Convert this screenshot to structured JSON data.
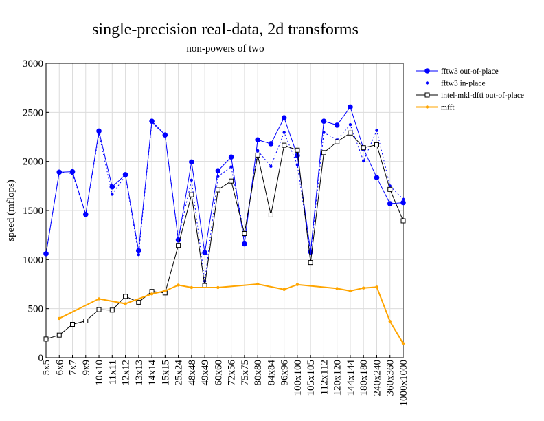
{
  "chart_data": {
    "type": "line",
    "title": "single-precision real-data, 2d transforms",
    "subtitle": "non-powers of two",
    "ylabel": "speed (mflops)",
    "xlabel": "",
    "ylim": [
      0,
      3000
    ],
    "yticks": [
      0,
      500,
      1000,
      1500,
      2000,
      2500,
      3000
    ],
    "grid": true,
    "legend_position": "top-right, outside plot",
    "categories": [
      "5x5",
      "6x6",
      "7x7",
      "9x9",
      "10x10",
      "11x11",
      "12x12",
      "13x13",
      "14x14",
      "15x15",
      "25x24",
      "48x48",
      "49x49",
      "60x60",
      "72x56",
      "75x75",
      "80x80",
      "84x84",
      "96x96",
      "100x100",
      "105x105",
      "112x112",
      "120x120",
      "144x144",
      "180x180",
      "240x240",
      "360x360",
      "1000x1000"
    ],
    "series": [
      {
        "name": "fftw3 out-of-place",
        "color": "#0000ff",
        "style": "solid",
        "marker": "filled-circle",
        "values": [
          1060,
          1890,
          1895,
          1460,
          2310,
          1740,
          1865,
          1090,
          2410,
          2270,
          1200,
          1995,
          1070,
          1905,
          2045,
          1160,
          2220,
          2180,
          2445,
          2060,
          1080,
          2410,
          2370,
          2555,
          2130,
          1835,
          1570,
          1580
        ]
      },
      {
        "name": "fftw3 in-place",
        "color": "#0000ff",
        "style": "dotted",
        "marker": "small-dot",
        "values": [
          1060,
          1890,
          1875,
          1460,
          2280,
          1665,
          1855,
          1050,
          2400,
          2265,
          1215,
          1810,
          780,
          1845,
          1945,
          1250,
          2110,
          1950,
          2295,
          1965,
          1060,
          2295,
          2220,
          2375,
          2005,
          2315,
          1750,
          1615
        ]
      },
      {
        "name": "intel-mkl-dfti out-of-place",
        "color": "#000000",
        "style": "solid",
        "marker": "open-square",
        "values": [
          190,
          230,
          340,
          375,
          490,
          485,
          625,
          565,
          675,
          660,
          1145,
          1660,
          735,
          1710,
          1800,
          1265,
          2065,
          1455,
          2165,
          2115,
          970,
          2090,
          2200,
          2290,
          2140,
          2170,
          1715,
          1395
        ]
      },
      {
        "name": "mfft",
        "color": "#ffa500",
        "style": "solid",
        "marker": "small-dot",
        "values": [
          null,
          400,
          null,
          null,
          600,
          null,
          550,
          null,
          650,
          680,
          740,
          715,
          null,
          715,
          null,
          null,
          750,
          null,
          695,
          745,
          null,
          null,
          705,
          680,
          710,
          720,
          370,
          145
        ]
      }
    ]
  }
}
